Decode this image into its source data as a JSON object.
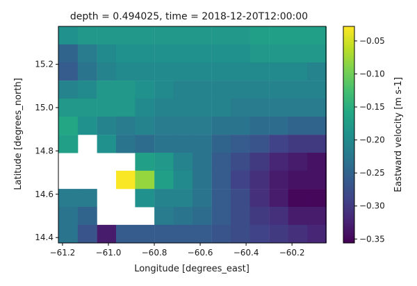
{
  "chart_data": {
    "type": "heatmap",
    "title": "depth = 0.494025, time = 2018-12-20T12:00:00",
    "xlabel": "Longitude [degrees_east]",
    "ylabel": "Latitude [degrees_north]",
    "colorbar_label": "Eastward velocity [m s-1]",
    "colormap": "viridis",
    "x_ticks": [
      -61.2,
      -61.0,
      -60.8,
      -60.6,
      -60.4,
      -60.2
    ],
    "x_tick_labels": [
      "−61.2",
      "−61.0",
      "−60.8",
      "−60.6",
      "−60.4",
      "−60.2"
    ],
    "y_ticks": [
      14.4,
      14.6,
      14.8,
      15.0,
      15.2
    ],
    "y_tick_labels": [
      "14.4",
      "14.6",
      "14.8",
      "15.0",
      "15.2"
    ],
    "colorbar_ticks": [
      -0.35,
      -0.3,
      -0.25,
      -0.2,
      -0.15,
      -0.1,
      -0.05
    ],
    "colorbar_tick_labels": [
      "−0.35",
      "−0.30",
      "−0.25",
      "−0.20",
      "−0.15",
      "−0.10",
      "−0.05"
    ],
    "color_range": [
      -0.356,
      -0.028
    ],
    "x_range": [
      -61.218,
      -60.052
    ],
    "y_range": [
      14.375,
      15.375
    ],
    "cell_width": 0.0833,
    "cell_height": 0.0833,
    "x_centers": [
      -61.175,
      -61.092,
      -61.008,
      -60.925,
      -60.842,
      -60.758,
      -60.675,
      -60.592,
      -60.508,
      -60.425,
      -60.342,
      -60.258,
      -60.175,
      -60.092
    ],
    "y_centers": [
      15.333,
      15.25,
      15.167,
      15.083,
      15.0,
      14.917,
      14.833,
      14.75,
      14.667,
      14.583,
      14.5,
      14.417
    ],
    "values": [
      [
        -0.19,
        -0.18,
        -0.18,
        -0.18,
        -0.18,
        -0.18,
        -0.18,
        -0.18,
        -0.18,
        -0.18,
        -0.17,
        -0.17,
        -0.17,
        -0.17
      ],
      [
        -0.25,
        -0.22,
        -0.2,
        -0.19,
        -0.19,
        -0.19,
        -0.19,
        -0.19,
        -0.19,
        -0.19,
        -0.18,
        -0.18,
        -0.18,
        -0.18
      ],
      [
        -0.26,
        -0.23,
        -0.21,
        -0.2,
        -0.2,
        -0.2,
        -0.2,
        -0.2,
        -0.2,
        -0.2,
        -0.2,
        -0.2,
        -0.2,
        -0.21
      ],
      [
        -0.21,
        -0.2,
        -0.18,
        -0.18,
        -0.19,
        -0.2,
        -0.21,
        -0.21,
        -0.21,
        -0.21,
        -0.21,
        -0.21,
        -0.21,
        -0.21
      ],
      [
        -0.18,
        -0.18,
        -0.18,
        -0.18,
        -0.2,
        -0.21,
        -0.21,
        -0.21,
        -0.21,
        -0.22,
        -0.22,
        -0.22,
        -0.22,
        -0.22
      ],
      [
        -0.16,
        -0.19,
        -0.21,
        -0.22,
        -0.21,
        -0.22,
        -0.22,
        -0.22,
        -0.23,
        -0.23,
        -0.24,
        -0.24,
        -0.25,
        -0.25
      ],
      [
        -0.17,
        null,
        -0.19,
        -0.23,
        -0.24,
        -0.23,
        -0.23,
        -0.23,
        -0.25,
        -0.26,
        -0.27,
        -0.29,
        -0.3,
        -0.3
      ],
      [
        null,
        null,
        null,
        null,
        -0.17,
        -0.18,
        -0.21,
        -0.23,
        -0.26,
        -0.28,
        -0.3,
        -0.32,
        -0.33,
        -0.34
      ],
      [
        null,
        null,
        null,
        -0.03,
        -0.08,
        -0.17,
        -0.2,
        -0.23,
        -0.26,
        -0.29,
        -0.31,
        -0.33,
        -0.34,
        -0.34
      ],
      [
        -0.22,
        -0.22,
        null,
        null,
        -0.19,
        -0.21,
        -0.21,
        -0.23,
        -0.26,
        -0.28,
        -0.31,
        -0.33,
        -0.35,
        -0.35
      ],
      [
        -0.23,
        -0.25,
        null,
        null,
        null,
        -0.22,
        -0.23,
        -0.24,
        -0.26,
        -0.28,
        -0.3,
        -0.31,
        -0.33,
        -0.33
      ],
      [
        -0.23,
        -0.27,
        -0.33,
        -0.26,
        -0.26,
        -0.26,
        -0.26,
        -0.26,
        -0.27,
        -0.28,
        -0.29,
        -0.3,
        -0.31,
        -0.32
      ]
    ]
  }
}
